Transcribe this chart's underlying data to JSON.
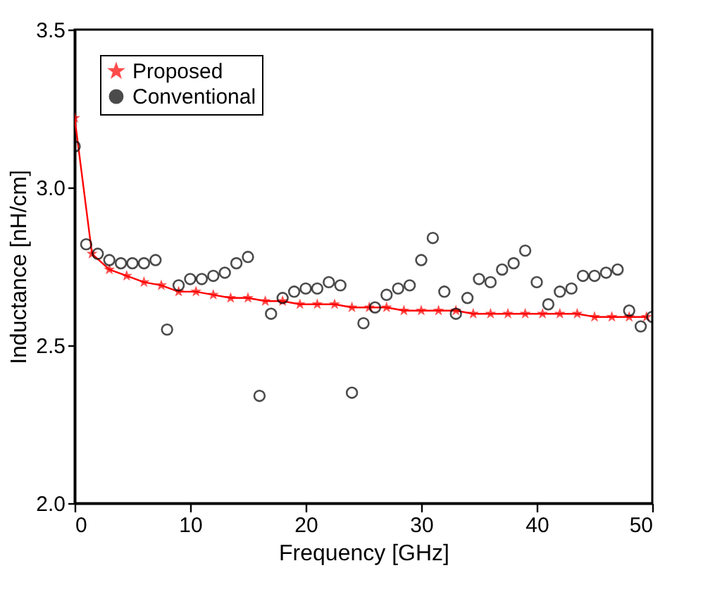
{
  "chart_data": {
    "type": "line",
    "xlabel": "Frequency [GHz]",
    "ylabel": "Inductance [nH/cm]",
    "xlim": [
      0,
      50
    ],
    "xticks": [
      0,
      10,
      20,
      30,
      40,
      50
    ],
    "ylim": [
      2.0,
      3.5
    ],
    "yticks": [
      {
        "value": 2.0,
        "label": "2.0"
      },
      {
        "value": 2.5,
        "label": "2.5"
      },
      {
        "value": 3.0,
        "label": "3.0"
      },
      {
        "value": 3.5,
        "label": "3.5"
      }
    ],
    "grid": false,
    "legend": "top left",
    "series": [
      {
        "name": "Proposed",
        "type": "line",
        "marker": "star",
        "line_style": "solid",
        "color": "#ff0000",
        "x": [
          0,
          1.5,
          3,
          4.5,
          6,
          7.5,
          9,
          10.5,
          12,
          13.5,
          15,
          16.5,
          18,
          19.5,
          21,
          22.5,
          24,
          25.5,
          27,
          28.5,
          30,
          31.5,
          33,
          34.5,
          36,
          37.5,
          39,
          40.5,
          42,
          43.5,
          45,
          46.5,
          48,
          49.5
        ],
        "values": [
          3.22,
          2.79,
          2.74,
          2.72,
          2.7,
          2.69,
          2.67,
          2.67,
          2.66,
          2.65,
          2.65,
          2.64,
          2.64,
          2.63,
          2.63,
          2.63,
          2.62,
          2.62,
          2.62,
          2.61,
          2.61,
          2.61,
          2.61,
          2.6,
          2.6,
          2.6,
          2.6,
          2.6,
          2.6,
          2.6,
          2.59,
          2.59,
          2.59,
          2.59
        ]
      },
      {
        "name": "Conventional",
        "type": "scatter",
        "marker": "circle",
        "color": "#000000",
        "x": [
          0,
          1,
          2,
          3,
          4,
          5,
          6,
          7,
          8,
          9,
          10,
          11,
          12,
          13,
          14,
          15,
          16,
          17,
          18,
          19,
          20,
          21,
          22,
          23,
          24,
          25,
          26,
          27,
          28,
          29,
          30,
          31,
          32,
          33,
          34,
          35,
          36,
          37,
          38,
          39,
          40,
          41,
          42,
          43,
          44,
          45,
          46,
          47,
          48,
          49,
          50
        ],
        "values": [
          3.13,
          2.82,
          2.79,
          2.77,
          2.76,
          2.76,
          2.76,
          2.77,
          2.55,
          2.69,
          2.71,
          2.71,
          2.72,
          2.73,
          2.76,
          2.78,
          2.34,
          2.6,
          2.65,
          2.67,
          2.68,
          2.68,
          2.7,
          2.69,
          2.35,
          2.57,
          2.62,
          2.66,
          2.68,
          2.69,
          2.77,
          2.84,
          2.67,
          2.6,
          2.65,
          2.71,
          2.7,
          2.74,
          2.76,
          2.8,
          2.7,
          2.63,
          2.67,
          2.68,
          2.72,
          2.72,
          2.73,
          2.74,
          2.61,
          2.56,
          2.59
        ]
      }
    ]
  }
}
